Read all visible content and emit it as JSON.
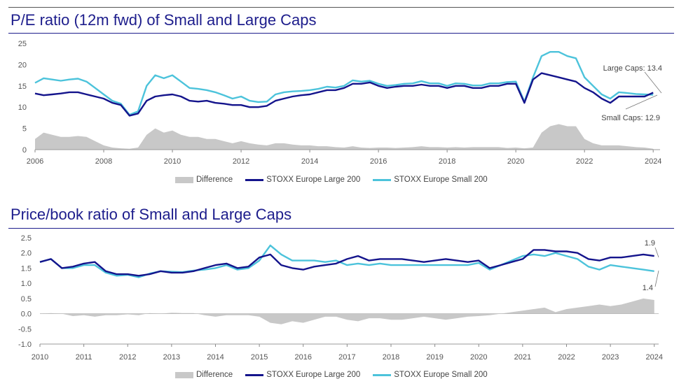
{
  "chart_data": [
    {
      "type": "line",
      "title": "P/E ratio (12m fwd) of Small and Large Caps",
      "xlabel": "",
      "ylabel": "",
      "xlim": [
        2006,
        2024.2
      ],
      "ylim": [
        0,
        25
      ],
      "x_ticks": [
        "2006",
        "2008",
        "2010",
        "2012",
        "2014",
        "2016",
        "2018",
        "2020",
        "2022",
        "2024"
      ],
      "y_ticks": [
        "0",
        "5",
        "10",
        "15",
        "20",
        "25"
      ],
      "legend": "bottom-center",
      "grid": false,
      "x": [
        2006,
        2006.25,
        2006.5,
        2006.75,
        2007,
        2007.25,
        2007.5,
        2007.75,
        2008,
        2008.25,
        2008.5,
        2008.75,
        2009,
        2009.25,
        2009.5,
        2009.75,
        2010,
        2010.25,
        2010.5,
        2010.75,
        2011,
        2011.25,
        2011.5,
        2011.75,
        2012,
        2012.25,
        2012.5,
        2012.75,
        2013,
        2013.25,
        2013.5,
        2013.75,
        2014,
        2014.25,
        2014.5,
        2014.75,
        2015,
        2015.25,
        2015.5,
        2015.75,
        2016,
        2016.25,
        2016.5,
        2016.75,
        2017,
        2017.25,
        2017.5,
        2017.75,
        2018,
        2018.25,
        2018.5,
        2018.75,
        2019,
        2019.25,
        2019.5,
        2019.75,
        2020,
        2020.25,
        2020.5,
        2020.75,
        2021,
        2021.25,
        2021.5,
        2021.75,
        2022,
        2022.25,
        2022.5,
        2022.75,
        2023,
        2023.25,
        2023.5,
        2023.75,
        2024
      ],
      "series": [
        {
          "name": "Difference",
          "kind": "area",
          "color": "#c8c8c8",
          "values": [
            2.5,
            4,
            3.5,
            3,
            3,
            3.2,
            3,
            2,
            1,
            0.5,
            0.3,
            0.2,
            0.5,
            3.5,
            5,
            4,
            4.5,
            3.5,
            3,
            3,
            2.5,
            2.5,
            2,
            1.5,
            2,
            1.5,
            1.2,
            1,
            1.5,
            1.5,
            1.2,
            1,
            1,
            0.8,
            0.8,
            0.6,
            0.5,
            0.8,
            0.5,
            0.4,
            0.5,
            0.5,
            0.4,
            0.5,
            0.6,
            0.8,
            0.6,
            0.6,
            0.5,
            0.6,
            0.5,
            0.6,
            0.6,
            0.6,
            0.6,
            0.4,
            0.5,
            0.3,
            0.5,
            4,
            5.5,
            6,
            5.5,
            5.5,
            2.5,
            1.5,
            1,
            1,
            1,
            0.8,
            0.6,
            0.5,
            0.2
          ]
        },
        {
          "name": "STOXX Europe Large 200",
          "kind": "line",
          "color": "#14148c",
          "values": [
            13.2,
            12.8,
            13,
            13.2,
            13.5,
            13.5,
            13,
            12.5,
            12,
            11,
            10.5,
            8,
            8.5,
            11.5,
            12.5,
            12.8,
            13,
            12.5,
            11.5,
            11.3,
            11.5,
            11,
            10.8,
            10.5,
            10.5,
            10,
            10,
            10.3,
            11.5,
            12,
            12.5,
            12.8,
            13,
            13.5,
            14,
            14,
            14.5,
            15.5,
            15.5,
            15.8,
            15,
            14.5,
            14.8,
            15,
            15,
            15.3,
            15,
            15,
            14.5,
            15,
            15,
            14.5,
            14.5,
            15,
            15,
            15.5,
            15.5,
            11,
            16.5,
            18,
            17.5,
            17,
            16.5,
            16,
            14.5,
            13.5,
            12,
            11,
            12.5,
            12.5,
            12.5,
            12.5,
            13.4
          ]
        },
        {
          "name": "STOXX Europe Small 200",
          "kind": "line",
          "color": "#4cc3db",
          "values": [
            15.7,
            16.8,
            16.5,
            16.2,
            16.5,
            16.7,
            16,
            14.5,
            13,
            11.5,
            10.8,
            8.2,
            9,
            15,
            17.5,
            16.8,
            17.5,
            16,
            14.5,
            14.3,
            14,
            13.5,
            12.8,
            12,
            12.5,
            11.5,
            11.2,
            11.3,
            13,
            13.5,
            13.7,
            13.8,
            14,
            14.3,
            14.8,
            14.6,
            15,
            16.3,
            16,
            16.2,
            15.5,
            15,
            15.2,
            15.5,
            15.6,
            16.1,
            15.6,
            15.6,
            15,
            15.6,
            15.5,
            15.1,
            15.1,
            15.6,
            15.6,
            15.9,
            16,
            11.3,
            17,
            22,
            23,
            23,
            22,
            21.5,
            17,
            15,
            13,
            12,
            13.5,
            13.3,
            13.1,
            13,
            12.9
          ]
        }
      ],
      "annotations": [
        {
          "text": "Large Caps: 13.4",
          "x": 2024,
          "y": 13.4
        },
        {
          "text": "Small Caps: 12.9",
          "x": 2024,
          "y": 12.9
        }
      ]
    },
    {
      "type": "line",
      "title": "Price/book ratio of Small and Large Caps",
      "xlabel": "",
      "ylabel": "",
      "xlim": [
        2010,
        2024.1
      ],
      "ylim": [
        -1.0,
        2.5
      ],
      "x_ticks": [
        "2010",
        "2011",
        "2012",
        "2013",
        "2014",
        "2015",
        "2016",
        "2017",
        "2018",
        "2019",
        "2020",
        "2021",
        "2022",
        "2023",
        "2024"
      ],
      "y_ticks": [
        "-1.0",
        "-0.5",
        "0.0",
        "0.5",
        "1.0",
        "1.5",
        "2.0",
        "2.5"
      ],
      "legend": "bottom-center",
      "grid": false,
      "x": [
        2010,
        2010.25,
        2010.5,
        2010.75,
        2011,
        2011.25,
        2011.5,
        2011.75,
        2012,
        2012.25,
        2012.5,
        2012.75,
        2013,
        2013.25,
        2013.5,
        2013.75,
        2014,
        2014.25,
        2014.5,
        2014.75,
        2015,
        2015.25,
        2015.5,
        2015.75,
        2016,
        2016.25,
        2016.5,
        2016.75,
        2017,
        2017.25,
        2017.5,
        2017.75,
        2018,
        2018.25,
        2018.5,
        2018.75,
        2019,
        2019.25,
        2019.5,
        2019.75,
        2020,
        2020.25,
        2020.5,
        2020.75,
        2021,
        2021.25,
        2021.5,
        2021.75,
        2022,
        2022.25,
        2022.5,
        2022.75,
        2023,
        2023.25,
        2023.5,
        2023.75,
        2024
      ],
      "series": [
        {
          "name": "Difference",
          "kind": "area",
          "color": "#c8c8c8",
          "values": [
            0,
            0.02,
            0,
            -0.08,
            -0.05,
            -0.1,
            -0.05,
            -0.05,
            -0.02,
            -0.05,
            0.02,
            0,
            0.03,
            0.02,
            0.02,
            -0.05,
            -0.1,
            -0.05,
            -0.05,
            -0.05,
            -0.1,
            -0.3,
            -0.35,
            -0.25,
            -0.3,
            -0.2,
            -0.1,
            -0.1,
            -0.2,
            -0.25,
            -0.15,
            -0.15,
            -0.2,
            -0.2,
            -0.15,
            -0.1,
            -0.15,
            -0.2,
            -0.15,
            -0.1,
            -0.08,
            -0.05,
            0,
            0.05,
            0.1,
            0.15,
            0.2,
            0.05,
            0.15,
            0.2,
            0.25,
            0.3,
            0.25,
            0.3,
            0.4,
            0.5,
            0.45
          ]
        },
        {
          "name": "STOXX Europe Large 200",
          "kind": "line",
          "color": "#14148c",
          "values": [
            1.7,
            1.8,
            1.5,
            1.55,
            1.65,
            1.7,
            1.4,
            1.3,
            1.3,
            1.25,
            1.3,
            1.4,
            1.35,
            1.35,
            1.4,
            1.5,
            1.6,
            1.65,
            1.5,
            1.55,
            1.85,
            1.95,
            1.6,
            1.5,
            1.45,
            1.55,
            1.6,
            1.65,
            1.8,
            1.9,
            1.75,
            1.8,
            1.8,
            1.8,
            1.75,
            1.7,
            1.75,
            1.8,
            1.75,
            1.7,
            1.75,
            1.5,
            1.6,
            1.7,
            1.8,
            2.1,
            2.1,
            2.05,
            2.05,
            2.0,
            1.8,
            1.75,
            1.85,
            1.85,
            1.9,
            1.95,
            1.9
          ]
        },
        {
          "name": "STOXX Europe Small 200",
          "kind": "line",
          "color": "#4cc3db",
          "values": [
            1.7,
            1.8,
            1.5,
            1.5,
            1.6,
            1.6,
            1.35,
            1.25,
            1.28,
            1.2,
            1.32,
            1.4,
            1.38,
            1.37,
            1.42,
            1.45,
            1.5,
            1.6,
            1.45,
            1.5,
            1.75,
            2.25,
            1.95,
            1.75,
            1.75,
            1.75,
            1.7,
            1.75,
            1.6,
            1.65,
            1.6,
            1.65,
            1.6,
            1.6,
            1.6,
            1.6,
            1.6,
            1.6,
            1.6,
            1.6,
            1.67,
            1.45,
            1.6,
            1.75,
            1.9,
            1.95,
            1.9,
            2.0,
            1.9,
            1.8,
            1.55,
            1.45,
            1.6,
            1.55,
            1.5,
            1.45,
            1.4
          ]
        }
      ],
      "annotations": [
        {
          "text": "1.9",
          "x": 2024,
          "y": 1.9
        },
        {
          "text": "1.4",
          "x": 2024,
          "y": 1.4
        }
      ]
    }
  ]
}
